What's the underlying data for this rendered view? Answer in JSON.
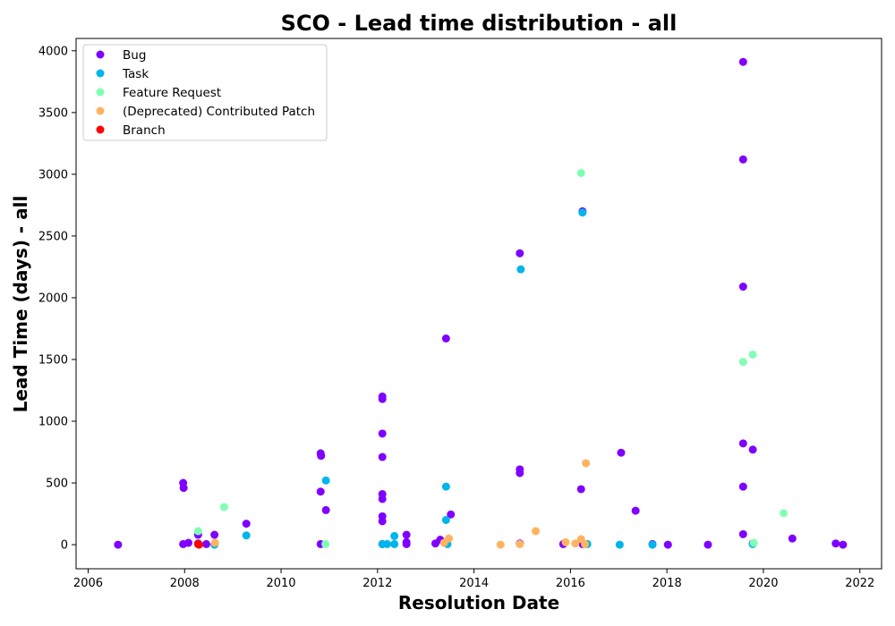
{
  "chart_data": {
    "type": "scatter",
    "title": "SCO - Lead time distribution - all",
    "xlabel": "Resolution Date",
    "ylabel": "Lead Time (days) - all",
    "xlim": [
      2005.75,
      2022.45
    ],
    "ylim": [
      -195,
      4100
    ],
    "x_ticks": [
      2006,
      2008,
      2010,
      2012,
      2014,
      2016,
      2018,
      2020,
      2022
    ],
    "y_ticks": [
      0,
      500,
      1000,
      1500,
      2000,
      2500,
      3000,
      3500,
      4000
    ],
    "grid": false,
    "legend_position": "top-left",
    "series": [
      {
        "name": "Bug",
        "color": "#8000ff",
        "points": [
          [
            2006.62,
            0
          ],
          [
            2007.97,
            500
          ],
          [
            2007.98,
            460
          ],
          [
            2007.97,
            5
          ],
          [
            2008.08,
            15
          ],
          [
            2008.28,
            80
          ],
          [
            2008.28,
            10
          ],
          [
            2008.45,
            5
          ],
          [
            2008.62,
            80
          ],
          [
            2009.28,
            170
          ],
          [
            2010.82,
            740
          ],
          [
            2010.83,
            720
          ],
          [
            2010.82,
            430
          ],
          [
            2010.93,
            280
          ],
          [
            2010.82,
            5
          ],
          [
            2012.1,
            1200
          ],
          [
            2012.1,
            1180
          ],
          [
            2012.1,
            900
          ],
          [
            2012.1,
            710
          ],
          [
            2012.1,
            410
          ],
          [
            2012.1,
            370
          ],
          [
            2012.1,
            230
          ],
          [
            2012.1,
            190
          ],
          [
            2012.1,
            5
          ],
          [
            2012.6,
            80
          ],
          [
            2012.6,
            20
          ],
          [
            2012.6,
            5
          ],
          [
            2013.2,
            10
          ],
          [
            2013.3,
            40
          ],
          [
            2013.42,
            1670
          ],
          [
            2013.52,
            245
          ],
          [
            2014.95,
            2360
          ],
          [
            2014.95,
            610
          ],
          [
            2014.95,
            580
          ],
          [
            2014.95,
            10
          ],
          [
            2015.85,
            5
          ],
          [
            2016.22,
            450
          ],
          [
            2016.25,
            2700
          ],
          [
            2016.25,
            5
          ],
          [
            2017.05,
            745
          ],
          [
            2017.35,
            275
          ],
          [
            2017.7,
            5
          ],
          [
            2018.02,
            0
          ],
          [
            2018.85,
            0
          ],
          [
            2019.58,
            3910
          ],
          [
            2019.58,
            3120
          ],
          [
            2019.58,
            2090
          ],
          [
            2019.58,
            820
          ],
          [
            2019.58,
            470
          ],
          [
            2019.58,
            85
          ],
          [
            2019.78,
            770
          ],
          [
            2019.78,
            10
          ],
          [
            2020.6,
            50
          ],
          [
            2021.5,
            10
          ],
          [
            2021.65,
            0
          ]
        ]
      },
      {
        "name": "Task",
        "color": "#00b5eb",
        "points": [
          [
            2008.62,
            0
          ],
          [
            2009.28,
            75
          ],
          [
            2010.93,
            520
          ],
          [
            2012.1,
            5
          ],
          [
            2012.2,
            5
          ],
          [
            2012.35,
            70
          ],
          [
            2012.35,
            5
          ],
          [
            2013.42,
            470
          ],
          [
            2013.42,
            200
          ],
          [
            2013.45,
            5
          ],
          [
            2014.97,
            2230
          ],
          [
            2016.25,
            2690
          ],
          [
            2016.35,
            5
          ],
          [
            2017.02,
            0
          ],
          [
            2017.7,
            0
          ],
          [
            2019.78,
            5
          ]
        ]
      },
      {
        "name": "Feature Request",
        "color": "#80ffb4",
        "points": [
          [
            2008.28,
            110
          ],
          [
            2008.82,
            305
          ],
          [
            2010.92,
            5
          ],
          [
            2016.22,
            3010
          ],
          [
            2019.58,
            1480
          ],
          [
            2019.78,
            1540
          ],
          [
            2019.8,
            15
          ],
          [
            2020.42,
            255
          ]
        ]
      },
      {
        "name": "(Deprecated) Contributed Patch",
        "color": "#ffb360",
        "points": [
          [
            2008.63,
            15
          ],
          [
            2013.38,
            15
          ],
          [
            2013.48,
            50
          ],
          [
            2014.55,
            0
          ],
          [
            2014.95,
            5
          ],
          [
            2015.28,
            110
          ],
          [
            2015.9,
            20
          ],
          [
            2016.1,
            10
          ],
          [
            2016.22,
            45
          ],
          [
            2016.32,
            660
          ],
          [
            2016.3,
            5
          ]
        ]
      },
      {
        "name": "Branch",
        "color": "#ff0000",
        "points": [
          [
            2008.28,
            5
          ],
          [
            2008.3,
            0
          ]
        ]
      }
    ]
  }
}
